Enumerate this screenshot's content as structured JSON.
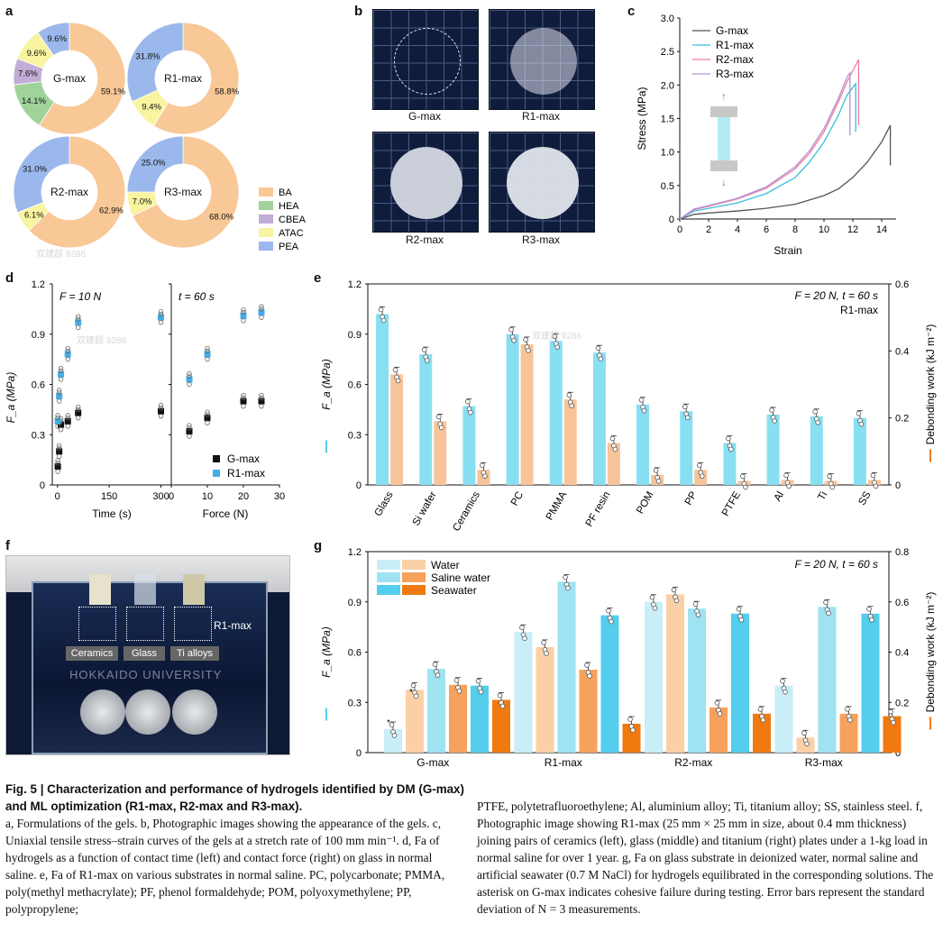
{
  "panels": {
    "a": "a",
    "b": "b",
    "c": "c",
    "d": "d",
    "e": "e",
    "f": "f",
    "g": "g"
  },
  "colors": {
    "BA": "#f8c896",
    "HEA": "#9fd39a",
    "CBEA": "#c2add6",
    "ATAC": "#f8f4a0",
    "PEA": "#9ab8ec",
    "water_bar": "#c9eef8",
    "saline_bar": "#9fe2f2",
    "sea_bar": "#55cdec",
    "water_work": "#fbd0a6",
    "saline_work": "#f6a25c",
    "sea_work": "#f07a10",
    "fa": "#88dff2",
    "work": "#f7c49a",
    "gmax": "#111111",
    "r1max": "#42aee8"
  },
  "panel_a": {
    "legend": [
      {
        "key": "BA",
        "label": "BA"
      },
      {
        "key": "HEA",
        "label": "HEA"
      },
      {
        "key": "CBEA",
        "label": "CBEA"
      },
      {
        "key": "ATAC",
        "label": "ATAC"
      },
      {
        "key": "PEA",
        "label": "PEA"
      }
    ],
    "donuts": [
      {
        "name": "G-max",
        "slices": [
          {
            "key": "BA",
            "value": 59.1,
            "label": "59.1%"
          },
          {
            "key": "HEA",
            "value": 14.1,
            "label": "14.1%"
          },
          {
            "key": "CBEA",
            "value": 7.6,
            "label": "7.6%"
          },
          {
            "key": "ATAC",
            "value": 9.6,
            "label": "9.6%"
          },
          {
            "key": "PEA",
            "value": 9.6,
            "label": "9.6%"
          }
        ]
      },
      {
        "name": "R1-max",
        "slices": [
          {
            "key": "BA",
            "value": 58.8,
            "label": "58.8%"
          },
          {
            "key": "ATAC",
            "value": 9.4,
            "label": "9.4%"
          },
          {
            "key": "PEA",
            "value": 31.8,
            "label": "31.8%"
          }
        ]
      },
      {
        "name": "R2-max",
        "slices": [
          {
            "key": "BA",
            "value": 62.9,
            "label": "62.9%"
          },
          {
            "key": "ATAC",
            "value": 6.1,
            "label": "6.1%"
          },
          {
            "key": "PEA",
            "value": 31.0,
            "label": "31.0%"
          }
        ]
      },
      {
        "name": "R3-max",
        "slices": [
          {
            "key": "BA",
            "value": 68.0,
            "label": "68.0%"
          },
          {
            "key": "ATAC",
            "value": 7.0,
            "label": "7.0%"
          },
          {
            "key": "PEA",
            "value": 25.0,
            "label": "25.0%"
          }
        ]
      }
    ]
  },
  "panel_b": {
    "labels": [
      "G-max",
      "R1-max",
      "R2-max",
      "R3-max"
    ]
  },
  "panel_f": {
    "labels": [
      "Ceramics",
      "Glass",
      "Ti alloys"
    ],
    "gel": "R1-max",
    "sign": "HOKKAIDO UNIVERSITY"
  },
  "watermarks": [
    "双建超 9286"
  ],
  "chart_data": [
    {
      "id": "c",
      "type": "line",
      "xlabel": "Strain",
      "ylabel": "Stress (MPa)",
      "xlim": [
        0,
        15
      ],
      "ylim": [
        0,
        3
      ],
      "xticks": [
        "0",
        "2",
        "4",
        "6",
        "8",
        "10",
        "12",
        "14"
      ],
      "yticks": [
        "0",
        "0.5",
        "1.0",
        "1.5",
        "2.0",
        "2.5",
        "3.0"
      ],
      "series": [
        {
          "name": "G-max",
          "color": "#555555",
          "x": [
            0,
            1,
            2,
            4,
            6,
            8,
            10,
            11,
            12,
            13,
            14,
            14.6,
            14.6
          ],
          "y": [
            0,
            0.07,
            0.09,
            0.12,
            0.16,
            0.22,
            0.35,
            0.45,
            0.62,
            0.85,
            1.15,
            1.4,
            0.8
          ]
        },
        {
          "name": "R1-max",
          "color": "#38bfdb",
          "x": [
            0,
            1,
            2,
            4,
            6,
            8,
            9,
            10,
            11,
            11.6,
            12.2,
            12.2
          ],
          "y": [
            0,
            0.12,
            0.16,
            0.24,
            0.38,
            0.62,
            0.85,
            1.15,
            1.55,
            1.85,
            2.02,
            1.3
          ]
        },
        {
          "name": "R2-max",
          "color": "#ee7c9c",
          "x": [
            0,
            1,
            2,
            4,
            6,
            8,
            9,
            10,
            11,
            11.6,
            12.4,
            12.4
          ],
          "y": [
            0,
            0.14,
            0.19,
            0.3,
            0.46,
            0.75,
            0.98,
            1.3,
            1.75,
            2.05,
            2.38,
            1.4
          ]
        },
        {
          "name": "R3-max",
          "color": "#b592d8",
          "x": [
            0,
            1,
            2,
            4,
            6,
            8,
            9,
            10,
            11,
            11.6,
            11.8,
            11.8
          ],
          "y": [
            0,
            0.15,
            0.2,
            0.31,
            0.48,
            0.78,
            1.02,
            1.35,
            1.8,
            2.12,
            2.18,
            1.25
          ]
        }
      ]
    },
    {
      "id": "d_left",
      "type": "scatter",
      "xlabel": "Time (s)",
      "ylabel": "F_a (MPa)",
      "condition": "F = 10 N",
      "xlim": [
        -15,
        330
      ],
      "ylim": [
        0,
        1.2
      ],
      "xticks": [
        "0",
        "150",
        "300"
      ],
      "yticks": [
        "0",
        "0.3",
        "0.6",
        "0.9",
        "1.2"
      ],
      "series": [
        {
          "name": "G-max",
          "x": [
            1,
            5,
            10,
            30,
            60,
            300
          ],
          "y": [
            0.11,
            0.2,
            0.36,
            0.38,
            0.43,
            0.44
          ]
        },
        {
          "name": "R1-max",
          "x": [
            1,
            5,
            10,
            30,
            60,
            300
          ],
          "y": [
            0.38,
            0.53,
            0.66,
            0.78,
            0.97,
            1.0
          ]
        }
      ]
    },
    {
      "id": "d_right",
      "type": "scatter",
      "xlabel": "Force (N)",
      "condition": "t = 60 s",
      "xlim": [
        0,
        30
      ],
      "ylim": [
        0,
        1.2
      ],
      "xticks": [
        "0",
        "10",
        "20",
        "30"
      ],
      "series": [
        {
          "name": "G-max",
          "x": [
            5,
            10,
            20,
            25
          ],
          "y": [
            0.32,
            0.4,
            0.5,
            0.5
          ]
        },
        {
          "name": "R1-max",
          "x": [
            5,
            10,
            20,
            25
          ],
          "y": [
            0.63,
            0.78,
            1.01,
            1.03
          ]
        }
      ],
      "legend": [
        "G-max",
        "R1-max"
      ]
    },
    {
      "id": "e",
      "type": "bar",
      "condition": "F = 20 N, t = 60 s",
      "gel": "R1-max",
      "ylabel_left": "F_a (MPa)",
      "ylabel_right": "Debonding work (kJ m⁻²)",
      "ylim_left": [
        0,
        1.2
      ],
      "ylim_right": [
        0,
        0.6
      ],
      "yticks_left": [
        "0",
        "0.3",
        "0.6",
        "0.9",
        "1.2"
      ],
      "yticks_right": [
        "0",
        "0.2",
        "0.4",
        "0.6"
      ],
      "categories": [
        "Glass",
        "Si wafer",
        "Ceramics",
        "PC",
        "PMMA",
        "PF resin",
        "POM",
        "PP",
        "PTFE",
        "Al",
        "Ti",
        "SS"
      ],
      "series": [
        {
          "name": "F_a",
          "values": [
            1.02,
            0.78,
            0.47,
            0.9,
            0.86,
            0.79,
            0.48,
            0.44,
            0.25,
            0.42,
            0.41,
            0.4
          ]
        },
        {
          "name": "Debonding work",
          "values": [
            0.33,
            0.19,
            0.045,
            0.42,
            0.255,
            0.125,
            0.03,
            0.045,
            0.012,
            0.015,
            0.012,
            0.015
          ]
        }
      ]
    },
    {
      "id": "g",
      "type": "bar",
      "condition": "F = 20 N, t = 60 s",
      "ylabel_left": "F_a (MPa)",
      "ylabel_right": "Debonding work (kJ m⁻²)",
      "ylim_left": [
        0,
        1.2
      ],
      "ylim_right": [
        0,
        0.8
      ],
      "yticks_left": [
        "0",
        "0.3",
        "0.6",
        "0.9",
        "1.2"
      ],
      "yticks_right": [
        "0",
        "0.2",
        "0.4",
        "0.6",
        "0.8"
      ],
      "categories": [
        "G-max",
        "R1-max",
        "R2-max",
        "R3-max"
      ],
      "legend": [
        "Water",
        "Saline water",
        "Seawater"
      ],
      "series": [
        {
          "name": "F_a Water",
          "values": [
            0.14,
            0.72,
            0.9,
            0.4
          ]
        },
        {
          "name": "Work Water",
          "values": [
            0.25,
            0.42,
            0.63,
            0.06
          ]
        },
        {
          "name": "F_a Saline water",
          "values": [
            0.5,
            1.02,
            0.86,
            0.87
          ]
        },
        {
          "name": "Work Saline water",
          "values": [
            0.27,
            0.33,
            0.18,
            0.155
          ]
        },
        {
          "name": "F_a Seawater",
          "values": [
            0.4,
            0.82,
            0.83,
            0.83
          ]
        },
        {
          "name": "Work Seawater",
          "values": [
            0.21,
            0.115,
            0.155,
            0.145
          ]
        }
      ]
    }
  ],
  "caption": {
    "title": "Fig. 5 | Characterization and performance of hydrogels identified by DM (G-max) and ML optimization (R1-max, R2-max and R3-max).",
    "left": "a, Formulations of the gels. b, Photographic images showing the appearance of the gels. c, Uniaxial tensile stress–strain curves of the gels at a stretch rate of 100 mm min⁻¹. d, Fa of hydrogels as a function of contact time (left) and contact force (right) on glass in normal saline. e, Fa of R1-max on various substrates in normal saline. PC, polycarbonate; PMMA, poly(methyl methacrylate); PF, phenol formaldehyde; POM, polyoxymethylene; PP, polypropylene;",
    "right": "PTFE, polytetrafluoroethylene; Al, aluminium alloy; Ti, titanium alloy; SS, stainless steel. f, Photographic image showing R1-max (25 mm × 25 mm in size, about 0.4 mm thickness) joining pairs of ceramics (left), glass (middle) and titanium (right) plates under a 1-kg load in normal saline for over 1 year. g, Fa on glass substrate in deionized water, normal saline and artificial seawater (0.7 M NaCl) for hydrogels equilibrated in the corresponding solutions. The asterisk on G-max indicates cohesive failure during testing. Error bars represent the standard deviation of N = 3 measurements."
  }
}
